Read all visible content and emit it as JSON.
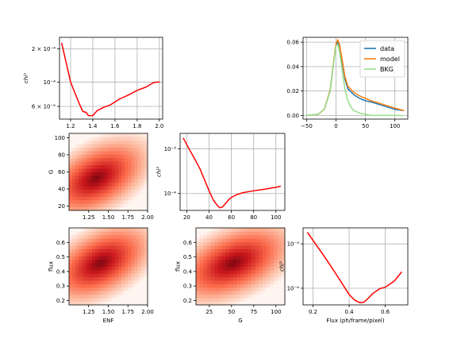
{
  "chart_data": [
    {
      "id": "enf-chi2",
      "type": "line",
      "xlabel": "",
      "ylabel": "chi²",
      "xlim": [
        1.1,
        2.03
      ],
      "ylim": [
        4.6e-05,
        0.000255
      ],
      "yscale": "log",
      "grid": true,
      "xticks": [
        1.2,
        1.4,
        1.6,
        1.8,
        2.0
      ],
      "xtick_labels": [
        "1.2",
        "1.4",
        "1.6",
        "1.8",
        "2.0"
      ],
      "yticks": [
        6e-05,
        0.0001,
        0.0002
      ],
      "ytick_labels": [
        "6 × 10⁻⁵",
        "10⁻⁴",
        "2 × 10⁻⁴"
      ],
      "series": [
        {
          "color": "#ff0000",
          "x": [
            1.12,
            1.16,
            1.2,
            1.24,
            1.28,
            1.31,
            1.34,
            1.36,
            1.4,
            1.44,
            1.5,
            1.56,
            1.64,
            1.72,
            1.8,
            1.88,
            1.95,
            2.0
          ],
          "y": [
            0.000225,
            0.00015,
            0.0001,
            7.9e-05,
            6.3e-05,
            5.4e-05,
            5.3e-05,
            4.95e-05,
            4.95e-05,
            5.5e-05,
            5.9e-05,
            6.2e-05,
            7e-05,
            7.6e-05,
            8.4e-05,
            9e-05,
            9.9e-05,
            0.0001
          ]
        }
      ]
    },
    {
      "id": "profile-fit",
      "type": "line",
      "xlim": [
        -56,
        122
      ],
      "ylim": [
        -0.003,
        0.064
      ],
      "grid": true,
      "xticks": [
        -50,
        0,
        50,
        100
      ],
      "xtick_labels": [
        "−50",
        "0",
        "50",
        "100"
      ],
      "yticks": [
        0.0,
        0.02,
        0.04,
        0.06
      ],
      "ytick_labels": [
        "0.00",
        "0.02",
        "0.04",
        "0.06"
      ],
      "legend": {
        "position": "top-right",
        "entries": [
          "data",
          "model",
          "BKG"
        ]
      },
      "series": [
        {
          "name": "data",
          "color": "#1f77b4",
          "x": [
            -50,
            -30,
            -20,
            -10,
            -5,
            0,
            3,
            6,
            10,
            15,
            20,
            30,
            40,
            50,
            60,
            80,
            100,
            115
          ],
          "y": [
            0.0,
            0.001,
            0.005,
            0.02,
            0.04,
            0.058,
            0.06,
            0.057,
            0.045,
            0.03,
            0.022,
            0.017,
            0.014,
            0.012,
            0.011,
            0.008,
            0.005,
            0.004
          ]
        },
        {
          "name": "model",
          "color": "#ff7f0e",
          "x": [
            -50,
            -30,
            -20,
            -10,
            -5,
            0,
            3,
            6,
            10,
            15,
            20,
            30,
            40,
            50,
            60,
            80,
            100,
            115
          ],
          "y": [
            0.0,
            0.001,
            0.005,
            0.021,
            0.041,
            0.059,
            0.062,
            0.058,
            0.047,
            0.032,
            0.024,
            0.019,
            0.016,
            0.014,
            0.012,
            0.009,
            0.006,
            0.004
          ]
        },
        {
          "name": "BKG",
          "color": "#98df8a",
          "x": [
            -50,
            -30,
            -20,
            -10,
            -5,
            0,
            3,
            6,
            10,
            15,
            20,
            25,
            30,
            40,
            50,
            60,
            80,
            100,
            115
          ],
          "y": [
            0.0,
            0.001,
            0.005,
            0.02,
            0.04,
            0.057,
            0.058,
            0.052,
            0.038,
            0.022,
            0.012,
            0.007,
            0.004,
            0.002,
            0.001,
            0.0,
            0.0,
            0.0,
            0.0
          ]
        }
      ]
    },
    {
      "id": "enf-g-heatmap",
      "type": "heatmap",
      "xlabel": "",
      "ylabel": "G",
      "xlim": [
        1.0,
        2.0
      ],
      "ylim": [
        15,
        105
      ],
      "xticks": [
        1.25,
        1.5,
        1.75,
        2.0
      ],
      "xtick_labels": [
        "1.25",
        "1.50",
        "1.75",
        "2.00"
      ],
      "yticks": [
        20,
        40,
        60,
        80,
        100
      ],
      "ytick_labels": [
        "20",
        "40",
        "60",
        "80",
        "100"
      ],
      "colormap": "Reds",
      "minimum": {
        "x": 1.35,
        "y": 53
      }
    },
    {
      "id": "g-chi2",
      "type": "line",
      "xlabel": "",
      "ylabel": "chi²",
      "xlim": [
        14,
        108
      ],
      "ylim": [
        4.2e-05,
        0.0022
      ],
      "yscale": "log",
      "grid": true,
      "xticks": [
        20,
        40,
        60,
        80,
        100
      ],
      "xtick_labels": [
        "20",
        "40",
        "60",
        "80",
        "100"
      ],
      "yticks": [
        0.0001,
        0.001
      ],
      "ytick_labels": [
        "10⁻⁴",
        "10⁻³"
      ],
      "series": [
        {
          "color": "#ff0000",
          "x": [
            17,
            22,
            27,
            32,
            36,
            40,
            44,
            48,
            50,
            52,
            54,
            57,
            60,
            65,
            70,
            80,
            90,
            100,
            104
          ],
          "y": [
            0.0017,
            0.001,
            0.0006,
            0.00035,
            0.0002,
            0.000115,
            7e-05,
            5.2e-05,
            4.8e-05,
            5e-05,
            5.7e-05,
            7e-05,
            8.2e-05,
            9.5e-05,
            0.000104,
            0.000115,
            0.000125,
            0.000138,
            0.000145
          ]
        }
      ]
    },
    {
      "id": "enf-flux-heatmap",
      "type": "heatmap",
      "xlabel": "ENF",
      "ylabel": "flux",
      "xlim": [
        1.0,
        2.0
      ],
      "ylim": [
        0.17,
        0.7
      ],
      "xticks": [
        1.25,
        1.5,
        1.75,
        2.0
      ],
      "xtick_labels": [
        "1.25",
        "1.50",
        "1.75",
        "2.00"
      ],
      "yticks": [
        0.2,
        0.3,
        0.4,
        0.5,
        0.6
      ],
      "ytick_labels": [
        "0.2",
        "0.3",
        "0.4",
        "0.5",
        "0.6"
      ],
      "colormap": "Reds",
      "minimum": {
        "x": 1.4,
        "y": 0.46
      }
    },
    {
      "id": "g-flux-heatmap",
      "type": "heatmap",
      "xlabel": "G",
      "ylabel": "flux",
      "xlim": [
        10,
        110
      ],
      "ylim": [
        0.17,
        0.7
      ],
      "xticks": [
        25,
        50,
        75,
        100
      ],
      "xtick_labels": [
        "25",
        "50",
        "75",
        "100"
      ],
      "yticks": [
        0.2,
        0.3,
        0.4,
        0.5,
        0.6
      ],
      "ytick_labels": [
        "0.2",
        "0.3",
        "0.4",
        "0.5",
        "0.6"
      ],
      "colormap": "Reds",
      "minimum": {
        "x": 52,
        "y": 0.46
      }
    },
    {
      "id": "flux-chi2",
      "type": "line",
      "xlabel": "Flux (ph/frame/pixel)",
      "ylabel": "chi²",
      "xlim": [
        0.145,
        0.725
      ],
      "ylim": [
        4.2e-05,
        0.0023
      ],
      "yscale": "log",
      "grid": true,
      "xticks": [
        0.2,
        0.4,
        0.6
      ],
      "xtick_labels": [
        "0.2",
        "0.4",
        "0.6"
      ],
      "yticks": [
        0.0001,
        0.001
      ],
      "ytick_labels": [
        "10⁻⁴",
        "10⁻³"
      ],
      "series": [
        {
          "color": "#ff0000",
          "x": [
            0.17,
            0.2,
            0.25,
            0.3,
            0.35,
            0.4,
            0.43,
            0.46,
            0.48,
            0.5,
            0.53,
            0.57,
            0.6,
            0.65,
            0.69
          ],
          "y": [
            0.0018,
            0.0012,
            0.00062,
            0.00031,
            0.00015,
            7.2e-05,
            5.4e-05,
            4.7e-05,
            4.8e-05,
            5.6e-05,
            7.5e-05,
            9.8e-05,
            0.000105,
            0.000145,
            0.00023
          ]
        }
      ]
    }
  ]
}
